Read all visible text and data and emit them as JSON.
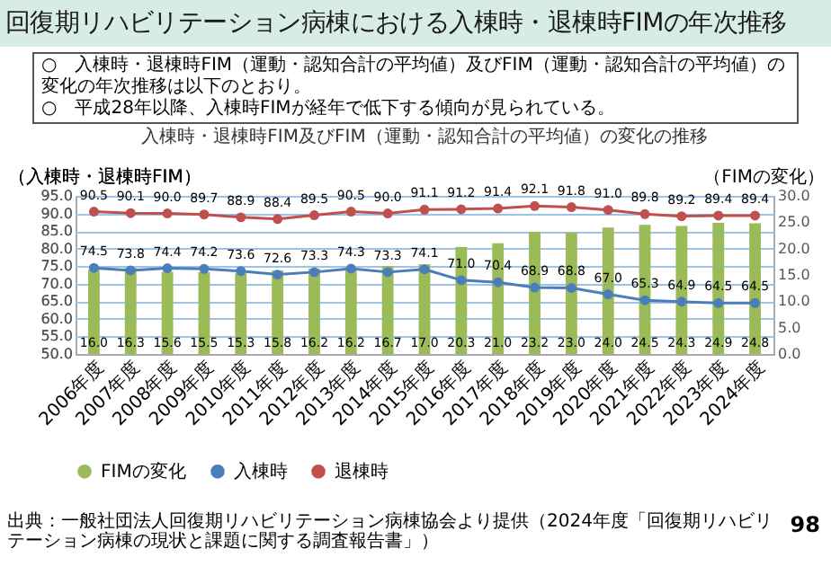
{
  "chart_data": {
    "type": "line",
    "title": "回復期リハビリテーション病棟における入棟時・退棟時FIMの年次推移",
    "subtitle": "入棟時・退棟時FIM及びFIM（運動・認知合計の平均値）の変化の推移",
    "ylabel": "（入棟時・退棟時FIM）",
    "y2label": "（FIMの変化）",
    "annotations": [
      "○　入棟時・退棟時FIM（運動・認知合計の平均値）及びFIM（運動・認知合計の平均値）の変化の年次推移は以下のとおり。",
      "○　平成28年以降、入棟時FIMが経年で低下する傾向が見られている。",
      "出典：一般社団法人回復期リハビリテーション病棟協会より提供（2024年度「回復期リハビリテーション病棟の現状と課題に関する調査報告書」）",
      "98"
    ],
    "categories": [
      "2006年度",
      "2007年度",
      "2008年度",
      "2009年度",
      "2010年度",
      "2011年度",
      "2012年度",
      "2013年度",
      "2014年度",
      "2015年度",
      "2016年度",
      "2017年度",
      "2018年度",
      "2019年度",
      "2020年度",
      "2021年度",
      "2022年度",
      "2023年度",
      "2024年度"
    ],
    "series": [
      {
        "name": "FIMの変化",
        "type": "bar",
        "axis": "y2",
        "color": "#9bbb59",
        "values": [
          16.0,
          16.3,
          15.6,
          15.5,
          15.3,
          15.8,
          16.2,
          16.2,
          16.7,
          17.0,
          20.3,
          21.0,
          23.2,
          23.0,
          24.0,
          24.5,
          24.3,
          24.9,
          24.8
        ],
        "value_labels": [
          "16.0",
          "16.3",
          "15.6",
          "15.5",
          "15.3",
          "15.8",
          "16.2",
          "16.2",
          "16.7",
          "17.0",
          "20.3",
          "21.0",
          "23.2",
          "23.0",
          "24.0",
          "24.5",
          "24.3",
          "24.9",
          "24.8"
        ]
      },
      {
        "name": "入棟時",
        "color": "#4a7ebb",
        "values": [
          74.5,
          73.8,
          74.4,
          74.2,
          73.6,
          72.6,
          73.3,
          74.3,
          73.3,
          74.1,
          71.0,
          70.4,
          68.9,
          68.8,
          67.0,
          65.3,
          64.9,
          64.5,
          64.5
        ],
        "value_labels": [
          "74.5",
          "73.8",
          "74.4",
          "74.2",
          "73.6",
          "72.6",
          "73.3",
          "74.3",
          "73.3",
          "74.1",
          "71.0",
          "70.4",
          "68.9",
          "68.8",
          "67.0",
          "65.3",
          "64.9",
          "64.5",
          "64.5"
        ]
      },
      {
        "name": "退棟時",
        "color": "#c0504d",
        "values": [
          90.5,
          90.1,
          90.0,
          89.7,
          88.9,
          88.4,
          89.5,
          90.5,
          90.0,
          91.1,
          91.2,
          91.4,
          92.1,
          91.8,
          91.0,
          89.8,
          89.2,
          89.4,
          89.4
        ],
        "value_labels": [
          "90.5",
          "90.1",
          "90.0",
          "89.7",
          "88.9",
          "88.4",
          "89.5",
          "90.5",
          "90.0",
          "91.1",
          "91.2",
          "91.4",
          "92.1",
          "91.8",
          "91.0",
          "89.8",
          "89.2",
          "89.4",
          "89.4"
        ]
      }
    ],
    "ylim": [
      50,
      95
    ],
    "yticks": [
      {
        "value": 50,
        "label": "50.0"
      },
      {
        "value": 55,
        "label": "55.0"
      },
      {
        "value": 60,
        "label": "60.0"
      },
      {
        "value": 65,
        "label": "65.0"
      },
      {
        "value": 70,
        "label": "70.0"
      },
      {
        "value": 75,
        "label": "75.0"
      },
      {
        "value": 80,
        "label": "80.0"
      },
      {
        "value": 85,
        "label": "85.0"
      },
      {
        "value": 90,
        "label": "90.0"
      },
      {
        "value": 95,
        "label": "95.0"
      }
    ],
    "y2lim": [
      0,
      30
    ],
    "y2ticks": [
      {
        "value": 0,
        "label": "0.0"
      },
      {
        "value": 5,
        "label": "5.0"
      },
      {
        "value": 10,
        "label": "10.0"
      },
      {
        "value": 15,
        "label": "15.0"
      },
      {
        "value": 20,
        "label": "20.0"
      },
      {
        "value": 25,
        "label": "25.0"
      },
      {
        "value": 30,
        "label": "30.0"
      }
    ],
    "grid": "y",
    "legend": "bottom",
    "marker": "circle",
    "line_style": "solid"
  }
}
